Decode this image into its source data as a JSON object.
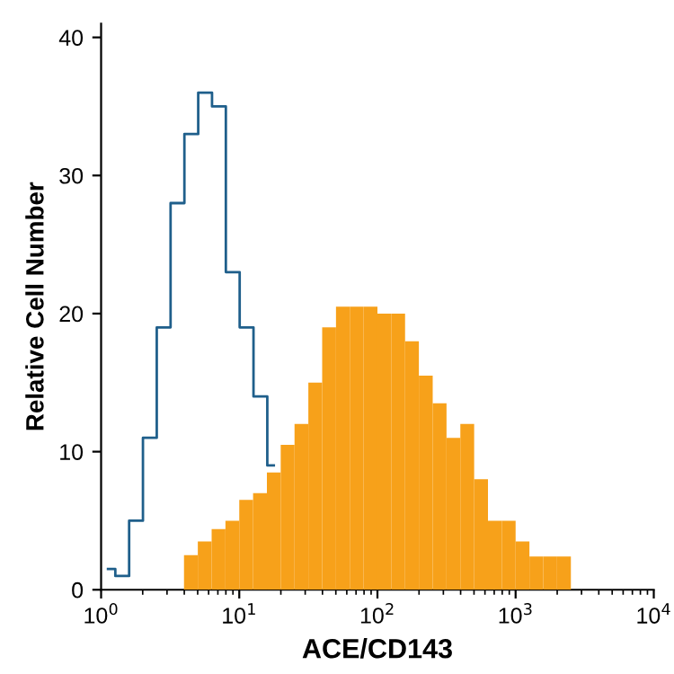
{
  "chart_data": {
    "type": "histogram",
    "xlabel": "ACE/CD143",
    "ylabel": "Relative Cell Number",
    "log": "x",
    "xlim": [
      1,
      10000
    ],
    "ylim": [
      0,
      41
    ],
    "xticks": [
      {
        "value": 1,
        "label": "10$^{0}$"
      },
      {
        "value": 10,
        "label": "10$^{1}$"
      },
      {
        "value": 100,
        "label": "10$^{2}$"
      },
      {
        "value": 1000,
        "label": "10$^{3}$"
      },
      {
        "value": 10000,
        "label": "10$^{4}$"
      }
    ],
    "yticks": [
      0,
      10,
      20,
      30,
      40
    ],
    "bins": [
      1,
      1.259,
      1.585,
      1.995,
      2.512,
      3.162,
      3.981,
      5.012,
      6.31,
      7.943,
      10,
      12.59,
      15.85,
      19.95,
      25.12,
      31.62,
      39.81,
      50.12,
      63.1,
      79.43,
      100,
      125.9,
      158.5,
      199.5,
      251.2,
      316.2,
      398.1,
      501.2,
      631,
      794.3,
      1000,
      1259,
      1585,
      1995,
      2512
    ],
    "series": [
      {
        "type": "step",
        "color": "#1f5f8b",
        "x": [
          1.122,
          1.413,
          1.778,
          2.239,
          2.818,
          3.548,
          4.467,
          5.623,
          7.079,
          8.913,
          11.22,
          14.13,
          17.78
        ],
        "values": [
          1.5,
          1,
          5,
          11,
          19,
          28,
          33,
          36,
          35,
          23,
          19,
          14,
          9
        ]
      },
      {
        "color": "#f7a11a",
        "values": [
          null,
          null,
          null,
          null,
          null,
          null,
          2.5,
          3.5,
          4.4,
          5,
          6.5,
          7,
          8.5,
          10.5,
          12,
          15,
          19,
          20.5,
          20.5,
          20.5,
          20,
          20,
          18,
          15.5,
          13.5,
          11,
          12,
          8,
          5,
          5,
          3.5,
          2.4,
          2.4,
          2.4
        ]
      }
    ]
  }
}
